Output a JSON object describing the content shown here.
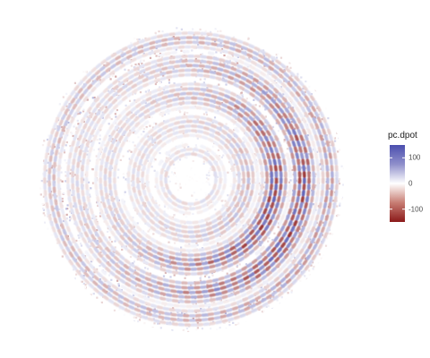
{
  "chart_data": {
    "type": "heatmap",
    "title": "",
    "xlabel": "",
    "ylabel": "",
    "legend": {
      "title": "pc.dpot",
      "placement": "right",
      "range": [
        -150,
        150
      ],
      "ticks": [
        100,
        0,
        -100
      ],
      "tick_labels": [
        "100",
        "0",
        "-100"
      ],
      "colors": {
        "high": "#4b4fae",
        "mid": "#ffffff",
        "low": "#8b1a1a"
      }
    },
    "grid": false,
    "shape": "circular polar field (disk)",
    "pattern": "concentric spiral rings of alternating positive/negative values, strongest amplitude on one outer arm"
  }
}
